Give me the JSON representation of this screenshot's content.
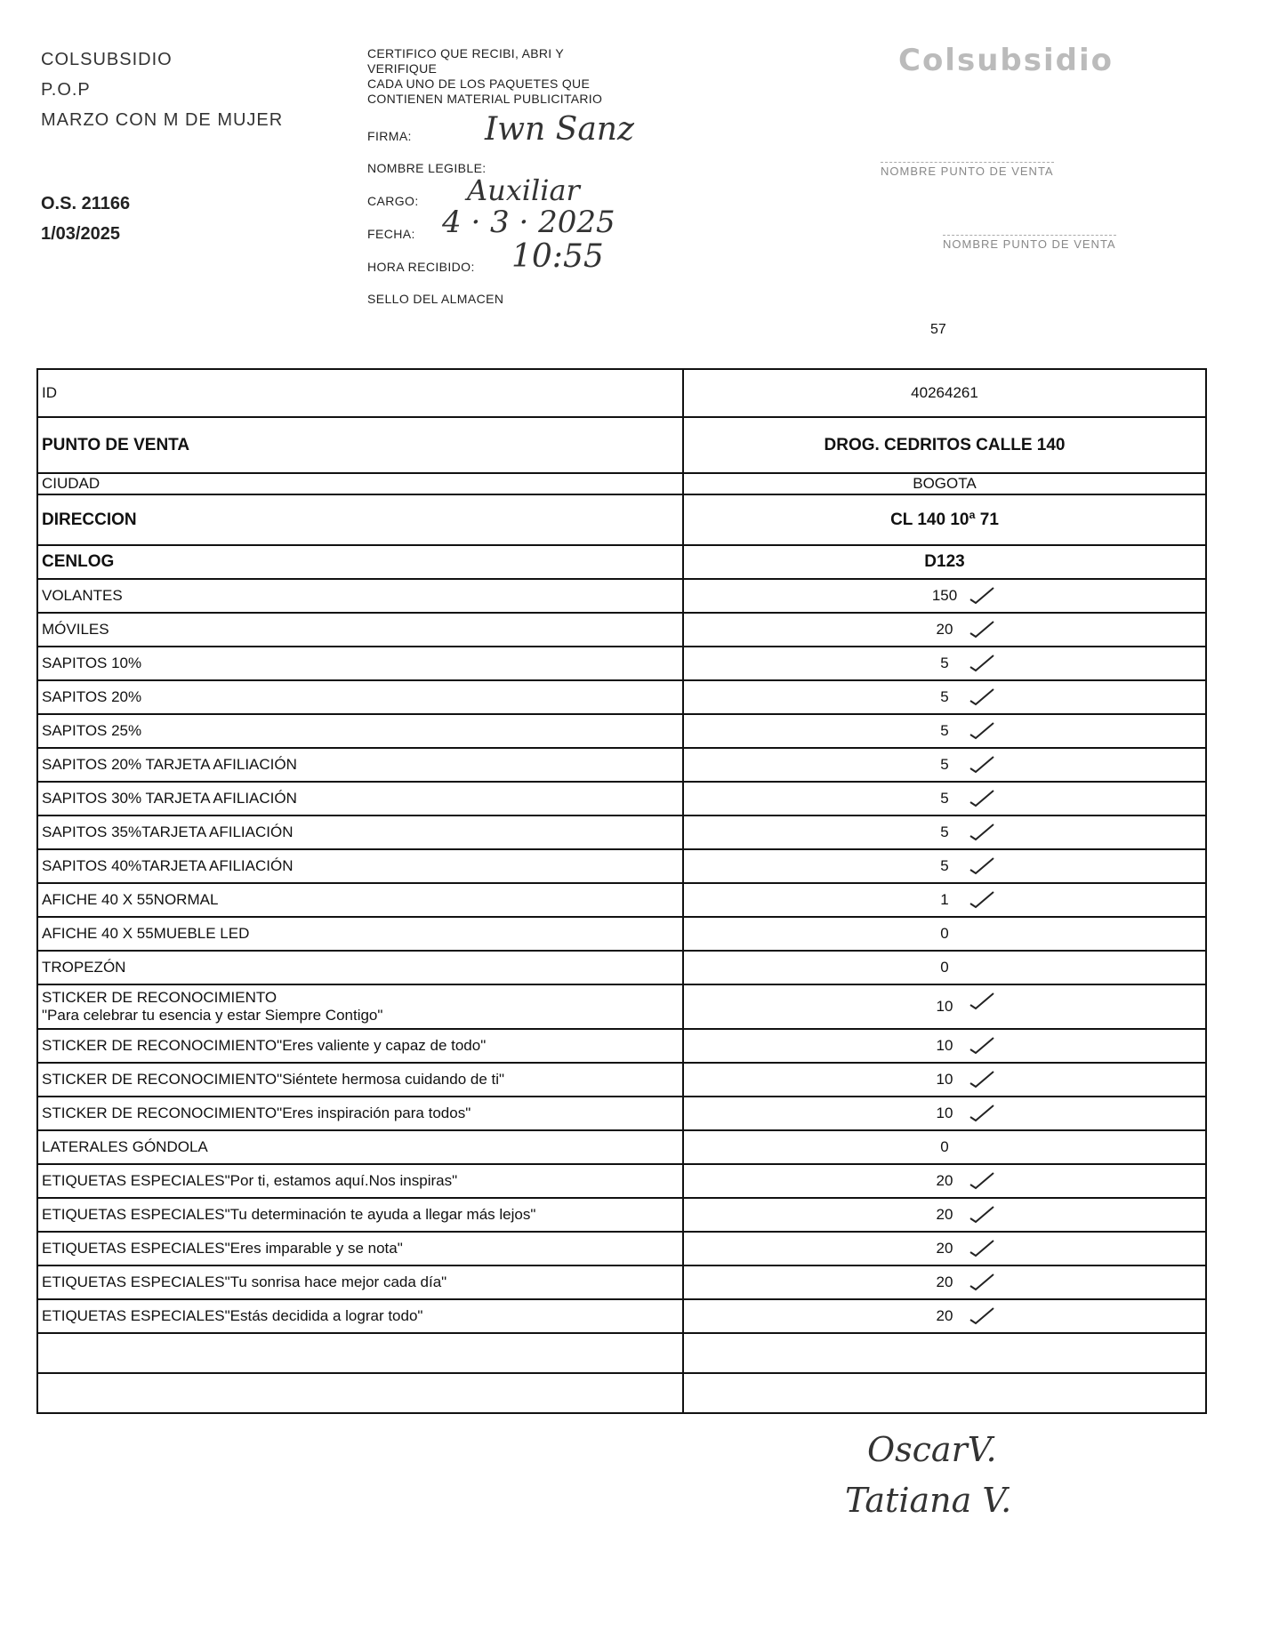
{
  "header": {
    "company": "COLSUBSIDIO",
    "type": "P.O.P",
    "campaign": "MARZO CON M DE MUJER",
    "order": "O.S. 21166",
    "date": "1/03/2025"
  },
  "certify": {
    "text": [
      "CERTIFICO QUE RECIBI, ABRI Y",
      "VERIFIQUE",
      "CADA  UNO DE LOS PAQUETES QUE",
      "CONTIENEN MATERIAL PUBLICITARIO"
    ],
    "firma_label": "FIRMA:",
    "firma_value": "Iwn Sanz",
    "nombre_label": "NOMBRE LEGIBLE:",
    "cargo_label": "CARGO:",
    "cargo_value": "Auxiliar",
    "fecha_label": "FECHA:",
    "fecha_value": "4 · 3 · 2025",
    "hora_label": "HORA RECIBIDO:",
    "hora_value": "10:55",
    "sello_label": "SELLO DEL ALMACEN"
  },
  "stamp": {
    "logo": "Colsubsidio",
    "line1": "NOMBRE PUNTO DE VENTA",
    "line2": "NOMBRE PUNTO DE VENTA"
  },
  "page_number": "57",
  "table": {
    "rows": [
      {
        "label": "ID",
        "value": "40264261",
        "cls": "r-id",
        "checked": false
      },
      {
        "label": "PUNTO DE VENTA",
        "value": "DROG. CEDRITOS CALLE 140",
        "cls": "r-pv",
        "checked": false
      },
      {
        "label": "CIUDAD",
        "value": "BOGOTA",
        "cls": "r-ci",
        "checked": false
      },
      {
        "label": "DIRECCION",
        "value": "CL 140 10ª 71",
        "cls": "r-di",
        "checked": false
      },
      {
        "label": "CENLOG",
        "value": "D123",
        "cls": "",
        "checked": false
      },
      {
        "label": "VOLANTES",
        "value": "150",
        "checked": true
      },
      {
        "label": "MÓVILES",
        "value": "20",
        "checked": true
      },
      {
        "label": "SAPITOS 10%",
        "value": "5",
        "checked": true
      },
      {
        "label": "SAPITOS 20%",
        "value": "5",
        "checked": true
      },
      {
        "label": "SAPITOS 25%",
        "value": "5",
        "checked": true
      },
      {
        "label": "SAPITOS 20% TARJETA AFILIACIÓN",
        "value": "5",
        "checked": true
      },
      {
        "label": "SAPITOS 30% TARJETA AFILIACIÓN",
        "value": "5",
        "checked": true
      },
      {
        "label": "SAPITOS 35%TARJETA AFILIACIÓN",
        "value": "5",
        "checked": true
      },
      {
        "label": "SAPITOS 40%TARJETA AFILIACIÓN",
        "value": "5",
        "checked": true
      },
      {
        "label": "AFICHE 40 X 55NORMAL",
        "value": "1",
        "checked": true
      },
      {
        "label": "AFICHE 40 X 55MUEBLE LED",
        "value": "0",
        "checked": false
      },
      {
        "label": "TROPEZÓN",
        "value": "0",
        "checked": false
      },
      {
        "label": "STICKER DE RECONOCIMIENTO",
        "label2": "\"Para celebrar tu esencia y estar Siempre Contigo\"",
        "value": "10",
        "cls": "r-2",
        "checked": true
      },
      {
        "label": "STICKER DE RECONOCIMIENTO\"Eres valiente y capaz de todo\"",
        "value": "10",
        "checked": true
      },
      {
        "label": "STICKER DE RECONOCIMIENTO\"Siéntete hermosa cuidando de ti\"",
        "value": "10",
        "checked": true
      },
      {
        "label": "STICKER DE RECONOCIMIENTO\"Eres inspiración para todos\"",
        "value": "10",
        "checked": true
      },
      {
        "label": "LATERALES GÓNDOLA",
        "value": "0",
        "checked": false
      },
      {
        "label": "ETIQUETAS ESPECIALES\"Por ti, estamos aquí.Nos inspiras\"",
        "value": "20",
        "checked": true
      },
      {
        "label": "ETIQUETAS ESPECIALES\"Tu determinación te ayuda a llegar más lejos\"",
        "value": "20",
        "checked": true
      },
      {
        "label": "ETIQUETAS ESPECIALES\"Eres imparable y se nota\"",
        "value": "20",
        "checked": true
      },
      {
        "label": "ETIQUETAS ESPECIALES\"Tu sonrisa hace mejor cada día\"",
        "value": "20",
        "checked": true
      },
      {
        "label": "ETIQUETAS ESPECIALES\"Estás decidida a lograr todo\"",
        "value": "20",
        "checked": true
      },
      {
        "label": "",
        "value": "",
        "cls": "r-b",
        "checked": false
      },
      {
        "label": "",
        "value": "",
        "cls": "r-b",
        "checked": false
      }
    ]
  },
  "signatures": [
    "OscarV.",
    "Tatiana V."
  ]
}
